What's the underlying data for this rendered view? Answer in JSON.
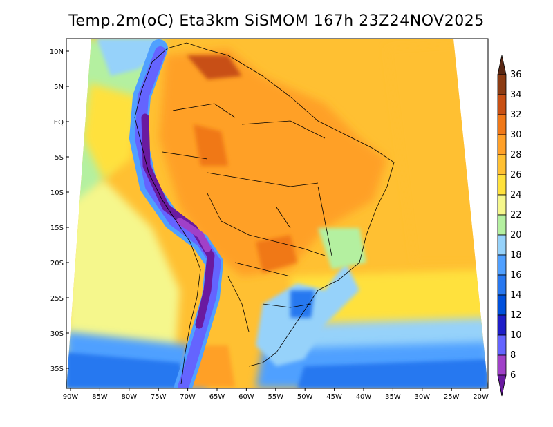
{
  "title": "Temp.2m(oC) Eta3km SiSMOM 167h 23Z24NOV2025",
  "map": {
    "lon_labels": [
      "90W",
      "85W",
      "80W",
      "75W",
      "70W",
      "65W",
      "60W",
      "55W",
      "50W",
      "45W",
      "40W",
      "35W",
      "30W",
      "25W",
      "20W"
    ],
    "lat_labels": [
      "10N",
      "5N",
      "EQ",
      "5S",
      "10S",
      "15S",
      "20S",
      "25S",
      "30S",
      "35S"
    ]
  },
  "colorbar": {
    "levels": [
      "6",
      "8",
      "10",
      "12",
      "14",
      "16",
      "18",
      "20",
      "22",
      "24",
      "26",
      "28",
      "30",
      "32",
      "34",
      "36"
    ],
    "colors": [
      "#6a1aa0",
      "#a040c8",
      "#6464ff",
      "#1e1ec8",
      "#0050dc",
      "#2878f0",
      "#50a0ff",
      "#96d2fa",
      "#b4f0a0",
      "#f5f78c",
      "#ffe13c",
      "#ffc032",
      "#ffa028",
      "#f07818",
      "#c85014",
      "#8c3c14",
      "#5a2814"
    ]
  }
}
